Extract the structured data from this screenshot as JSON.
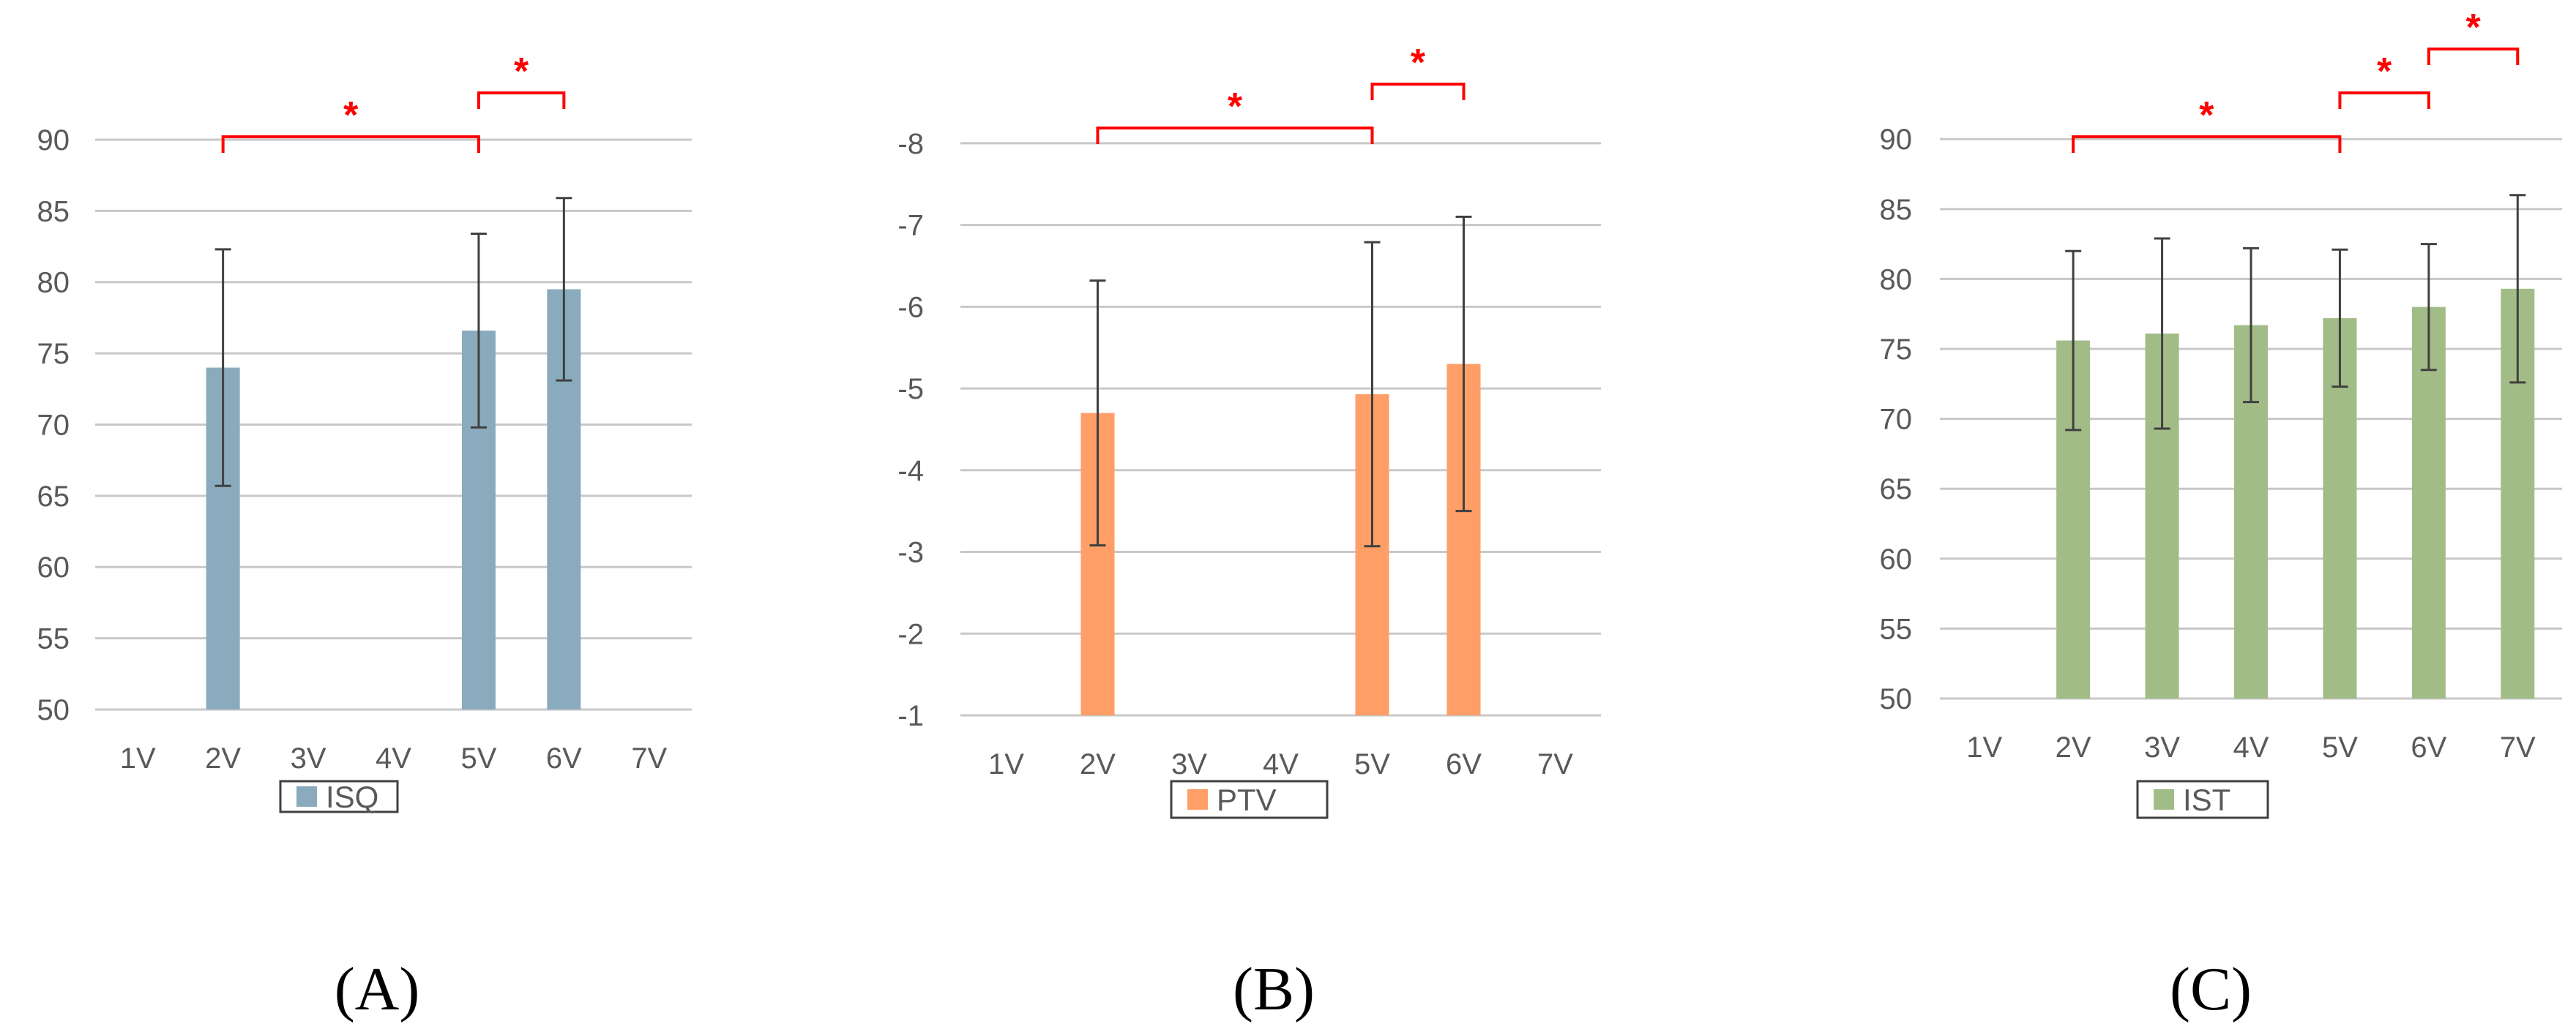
{
  "chart_data": [
    {
      "type": "bar",
      "panel_label": "(A)",
      "categories": [
        "1V",
        "2V",
        "3V",
        "4V",
        "5V",
        "6V",
        "7V"
      ],
      "series": [
        {
          "name": "ISQ",
          "color": "#8aabbd",
          "values": [
            null,
            74.0,
            null,
            null,
            76.6,
            79.5,
            null
          ],
          "error": [
            null,
            8.3,
            null,
            null,
            6.8,
            6.4,
            null
          ]
        }
      ],
      "yticks": [
        50,
        55,
        60,
        65,
        70,
        75,
        80,
        85,
        90
      ],
      "ylim": [
        50,
        92
      ],
      "y_reversed": false,
      "grid": true,
      "legend": "bottom",
      "significance": [
        {
          "from": "2V",
          "to": "5V",
          "label": "*",
          "level": 1
        },
        {
          "from": "5V",
          "to": "6V",
          "label": "*",
          "level": 2
        }
      ]
    },
    {
      "type": "bar",
      "panel_label": "(B)",
      "categories": [
        "1V",
        "2V",
        "3V",
        "4V",
        "5V",
        "6V",
        "7V"
      ],
      "series": [
        {
          "name": "PTV",
          "color": "#ff9e66",
          "values": [
            null,
            -4.7,
            null,
            null,
            -4.93,
            -5.3,
            null
          ],
          "error": [
            null,
            1.62,
            null,
            null,
            1.86,
            1.8,
            null
          ]
        }
      ],
      "yticks": [
        -1,
        -2,
        -3,
        -4,
        -5,
        -6,
        -7,
        -8
      ],
      "ylim": [
        -1,
        -8.5
      ],
      "y_reversed": true,
      "grid": true,
      "legend": "bottom",
      "significance": [
        {
          "from": "2V",
          "to": "5V",
          "label": "*",
          "level": 1
        },
        {
          "from": "5V",
          "to": "6V",
          "label": "*",
          "level": 2
        }
      ]
    },
    {
      "type": "bar",
      "panel_label": "(C)",
      "categories": [
        "1V",
        "2V",
        "3V",
        "4V",
        "5V",
        "6V",
        "7V"
      ],
      "series": [
        {
          "name": "IST",
          "color": "#a2bc88",
          "values": [
            null,
            75.6,
            76.1,
            76.7,
            77.2,
            78.0,
            79.3
          ],
          "error": [
            null,
            6.4,
            6.8,
            5.5,
            4.9,
            4.5,
            6.7
          ]
        }
      ],
      "yticks": [
        50,
        55,
        60,
        65,
        70,
        75,
        80,
        85,
        90
      ],
      "ylim": [
        50,
        92
      ],
      "y_reversed": false,
      "grid": true,
      "legend": "bottom",
      "significance": [
        {
          "from": "2V",
          "to": "5V",
          "label": "*",
          "level": 1
        },
        {
          "from": "5V",
          "to": "6V",
          "label": "*",
          "level": 2
        },
        {
          "from": "6V",
          "to": "7V",
          "label": "*",
          "level": 3
        }
      ]
    }
  ]
}
